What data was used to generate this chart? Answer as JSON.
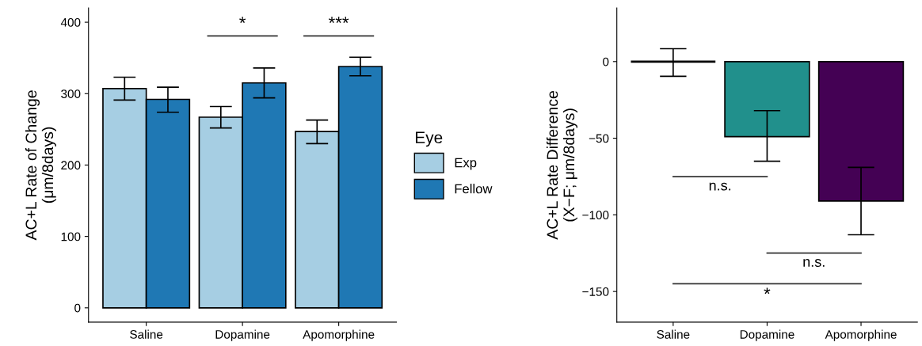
{
  "chart_data": [
    {
      "type": "bar",
      "categories": [
        "Saline",
        "Dopamine",
        "Apomorphine"
      ],
      "ylabel": "AC+L Rate of Change\n(μm/8days)",
      "legend_title": "Eye",
      "legend": "right",
      "ylim": [
        -20,
        420
      ],
      "yticks": [
        0,
        100,
        200,
        300,
        400
      ],
      "grid": false,
      "series": [
        {
          "name": "Exp",
          "color": "#a6cee3",
          "values": [
            307,
            267,
            247
          ],
          "errors": [
            [
              291,
              323
            ],
            [
              252,
              282
            ],
            [
              230,
              263
            ]
          ]
        },
        {
          "name": "Fellow",
          "color": "#1f78b4",
          "values": [
            292,
            315,
            338
          ],
          "errors": [
            [
              274,
              309
            ],
            [
              294,
              336
            ],
            [
              325,
              351
            ]
          ]
        }
      ],
      "annotations": [
        "*",
        "***"
      ]
    },
    {
      "type": "bar",
      "categories": [
        "Saline",
        "Dopamine",
        "Apomorphine"
      ],
      "ylabel": "AC+L Rate Difference\n(X−F; μm/8days)",
      "ylim": [
        -170,
        35
      ],
      "yticks": [
        {
          "value": 0,
          "label": "0"
        },
        {
          "value": -50,
          "label": "−50"
        },
        {
          "value": -100,
          "label": "−100"
        },
        {
          "value": -150,
          "label": "−150"
        }
      ],
      "grid": false,
      "values": [
        0,
        -49,
        -91
      ],
      "colors": [
        null,
        "#21908c",
        "#440154"
      ],
      "errors": [
        [
          -9.6,
          8.4
        ],
        [
          -65,
          -32
        ],
        [
          -113,
          -69
        ]
      ],
      "annotations": [
        "n.s.",
        "n.s.",
        "*"
      ]
    }
  ]
}
